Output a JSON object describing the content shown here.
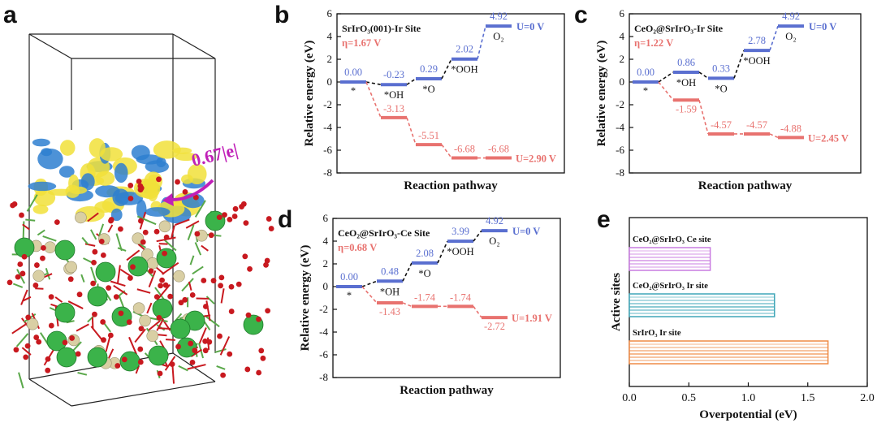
{
  "panels": {
    "a": {
      "letter": "a",
      "annotation": "0.67|e|"
    },
    "b": {
      "letter": "b"
    },
    "c": {
      "letter": "c"
    },
    "d": {
      "letter": "d"
    },
    "e": {
      "letter": "e"
    }
  },
  "colors": {
    "blue": "#5a6fd0",
    "red": "#e8726f",
    "black": "#111111",
    "purple_bar": "#c97be0",
    "teal_bar": "#3fa6b8",
    "orange_bar": "#ef8a45",
    "magenta": "#c020b8",
    "iso_yellow": "#f1e03a",
    "iso_blue": "#2e7fd0",
    "ce_green": "#3bb34a",
    "sr_beige": "#d9cfa4",
    "o_red": "#c8191f"
  },
  "chart_data": [
    {
      "id": "b",
      "type": "line",
      "title": "SrIrO₃(001)-Ir Site",
      "eta": "η=1.67 V",
      "xlabel": "Reaction pathway",
      "ylabel": "Relative energy (eV)",
      "ylim": [
        -8,
        6
      ],
      "yticks": [
        "6",
        "4",
        "2",
        "0",
        "-2",
        "-4",
        "-6",
        "-8"
      ],
      "series": [
        {
          "name": "U=0 V",
          "color": "blue",
          "values": [
            0.0,
            -0.23,
            0.29,
            2.02,
            4.92
          ],
          "labels": [
            "0.00",
            "-0.23",
            "0.29",
            "2.02",
            "4.92"
          ],
          "connector_colors": [
            "black",
            "black",
            "black",
            "blue"
          ]
        },
        {
          "name": "U=2.90 V",
          "color": "red",
          "values": [
            -3.13,
            -5.51,
            -6.68,
            -6.68
          ],
          "labels": [
            "-3.13",
            "-5.51",
            "-6.68",
            "-6.68"
          ],
          "start_index": 1
        }
      ],
      "species": [
        {
          "text": "*",
          "index": 0
        },
        {
          "text": "*OH",
          "index": 1
        },
        {
          "text": "*O",
          "index": 2
        },
        {
          "text": "*OOH",
          "index": 3
        },
        {
          "text": "O₂",
          "index": 4
        }
      ]
    },
    {
      "id": "c",
      "type": "line",
      "title": "CeO₂@SrIrO₃-Ir Site",
      "eta": "η=1.22 V",
      "xlabel": "Reaction pathway",
      "ylabel": "Relative energy (eV)",
      "ylim": [
        -8,
        6
      ],
      "yticks": [
        "6",
        "4",
        "2",
        "0",
        "-2",
        "-4",
        "-6",
        "-8"
      ],
      "series": [
        {
          "name": "U=0 V",
          "color": "blue",
          "values": [
            0.0,
            0.86,
            0.33,
            2.78,
            4.92
          ],
          "labels": [
            "0.00",
            "0.86",
            "0.33",
            "2.78",
            "4.92"
          ],
          "connector_colors": [
            "black",
            "black",
            "black",
            "blue"
          ]
        },
        {
          "name": "U=2.45 V",
          "color": "red",
          "values": [
            -1.59,
            -4.57,
            -4.57,
            -4.88
          ],
          "labels": [
            "-1.59",
            "-4.57",
            "-4.57",
            "-4.88"
          ],
          "start_index": 1
        }
      ],
      "species": [
        {
          "text": "*",
          "index": 0
        },
        {
          "text": "*OH",
          "index": 1
        },
        {
          "text": "*O",
          "index": 2
        },
        {
          "text": "*OOH",
          "index": 3
        },
        {
          "text": "O₂",
          "index": 4
        }
      ]
    },
    {
      "id": "d",
      "type": "line",
      "title": "CeO₂@SrIrO₃-Ce Site",
      "eta": "η=0.68 V",
      "xlabel": "Reaction pathway",
      "ylabel": "Relative energy (eV)",
      "ylim": [
        -8,
        6
      ],
      "yticks": [
        "6",
        "4",
        "2",
        "0",
        "-2",
        "-4",
        "-6",
        "-8"
      ],
      "series": [
        {
          "name": "U=0 V",
          "color": "blue",
          "values": [
            0.0,
            0.48,
            2.08,
            3.99,
            4.92
          ],
          "labels": [
            "0.00",
            "0.48",
            "2.08",
            "3.99",
            "4.92"
          ],
          "connector_colors": [
            "black",
            "black",
            "black",
            "black"
          ]
        },
        {
          "name": "U=1.91 V",
          "color": "red",
          "values": [
            -1.43,
            -1.74,
            -1.74,
            -2.72
          ],
          "labels": [
            "-1.43",
            "-1.74",
            "-1.74",
            "-2.72"
          ],
          "start_index": 1
        }
      ],
      "species": [
        {
          "text": "*",
          "index": 0
        },
        {
          "text": "*OH",
          "index": 1
        },
        {
          "text": "*O",
          "index": 2
        },
        {
          "text": "*OOH",
          "index": 3
        },
        {
          "text": "O₂",
          "index": 4
        }
      ]
    },
    {
      "id": "e",
      "type": "bar",
      "orientation": "horizontal",
      "xlabel": "Overpotential (eV)",
      "ylabel": "Active sites",
      "xlim": [
        0.0,
        2.0
      ],
      "xticks": [
        "0.0",
        "0.5",
        "1.0",
        "1.5",
        "2.0"
      ],
      "categories": [
        "CeO₂@SrIrO₃ Ce site",
        "CeO₂@SrIrO₃ Ir site",
        "SrIrO₃ Ir site"
      ],
      "values": [
        0.68,
        1.22,
        1.67
      ],
      "bar_colors": [
        "purple_bar",
        "teal_bar",
        "orange_bar"
      ]
    }
  ]
}
